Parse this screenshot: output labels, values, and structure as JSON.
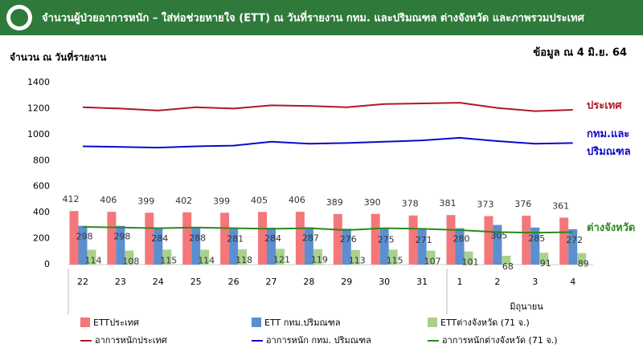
{
  "header": {
    "title": "จำนวนผู้ป่วยอาการหนัก – ใส่ท่อช่วยหายใจ (ETT) ณ วันที่รายงาน กทม. และปริมณฑล ต่างจังหวัด และภาพรวมประเทศ"
  },
  "chart_data": {
    "type": "bar",
    "subtitle": "จำนวน ณ วันที่รายงาน",
    "note": "ข้อมูล ณ 4 มิ.ย. 64",
    "categories": [
      "22",
      "23",
      "24",
      "25",
      "26",
      "27",
      "28",
      "29",
      "30",
      "31",
      "1",
      "2",
      "3",
      "4"
    ],
    "month_label": "มิถุนายน",
    "ylim": [
      0,
      1400
    ],
    "yticks": [
      0,
      200,
      400,
      600,
      800,
      1000,
      1200,
      1400
    ],
    "series": [
      {
        "name": "ETTประเทศ",
        "type": "bar",
        "color": "#f4777a",
        "values": [
          412,
          406,
          399,
          402,
          399,
          405,
          406,
          389,
          390,
          378,
          381,
          373,
          376,
          361
        ]
      },
      {
        "name": "ETT กทม.ปริมณฑล",
        "type": "bar",
        "color": "#5b8fd0",
        "values": [
          298,
          298,
          284,
          288,
          281,
          284,
          287,
          276,
          275,
          271,
          280,
          305,
          285,
          272
        ]
      },
      {
        "name": "ETTต่างจังหวัด (71 จ.)",
        "type": "bar",
        "color": "#a9d18e",
        "values": [
          114,
          108,
          115,
          114,
          118,
          121,
          119,
          113,
          115,
          107,
          101,
          68,
          91,
          89
        ]
      },
      {
        "name": "อาการหนักประเทศ",
        "type": "line",
        "color": "#b0172a",
        "end_label": [
          "ประเทศ"
        ],
        "values": [
          1210,
          1200,
          1185,
          1210,
          1200,
          1225,
          1220,
          1210,
          1235,
          1240,
          1245,
          1205,
          1180,
          1190
        ]
      },
      {
        "name": "อาการหนัก กทม. ปริมณฑล",
        "type": "line",
        "color": "#0a0ac8",
        "end_label": [
          "กทม.และ",
          "ปริมณฑล"
        ],
        "values": [
          910,
          905,
          900,
          910,
          915,
          945,
          930,
          935,
          945,
          955,
          975,
          950,
          930,
          935
        ]
      },
      {
        "name": "อาการหนักต่างจังหวัด (71 จ.)",
        "type": "line",
        "color": "#2a8a1e",
        "end_label": [
          "ต่างจังหวัด"
        ],
        "values": [
          290,
          285,
          280,
          285,
          280,
          275,
          280,
          265,
          280,
          275,
          265,
          250,
          245,
          250
        ]
      }
    ]
  }
}
